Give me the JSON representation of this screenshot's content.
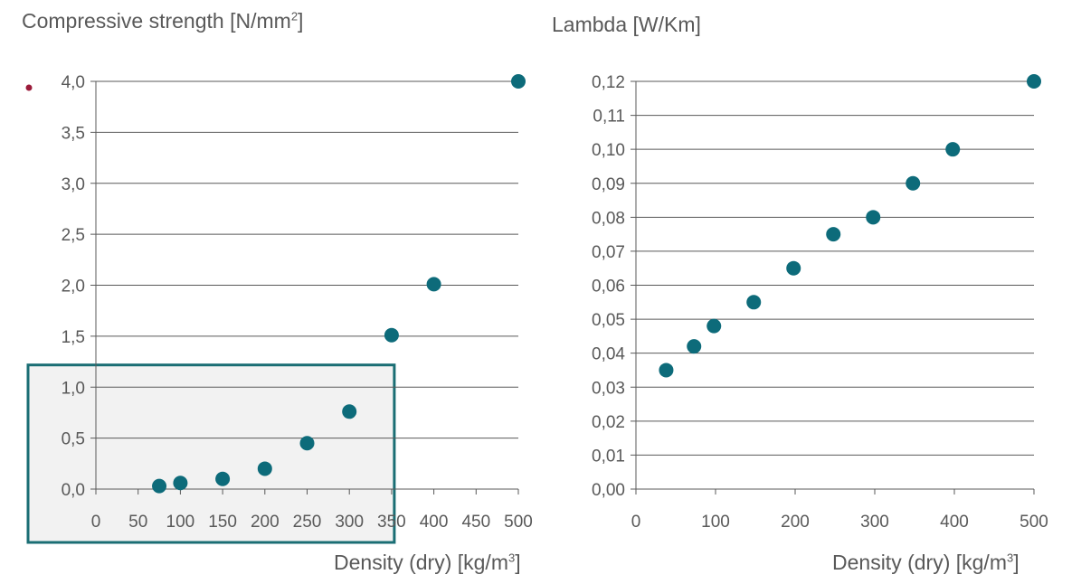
{
  "chart_data": [
    {
      "type": "scatter",
      "title_main": "Compressive strength [N/mm",
      "title_sup": "2",
      "title_end": "]",
      "xlabel_main": "Density (dry) [kg/m",
      "xlabel_sup": "3",
      "xlabel_end": "]",
      "xlim": [
        0,
        500
      ],
      "ylim": [
        0,
        4
      ],
      "x_ticks": [
        "0",
        "50",
        "100",
        "150",
        "200",
        "250",
        "300",
        "350",
        "400",
        "450",
        "500"
      ],
      "y_ticks": [
        "0,0",
        "0,5",
        "1,0",
        "1,5",
        "2,0",
        "2,5",
        "3,0",
        "3,5",
        "4,0"
      ],
      "grid": "horizontal",
      "points": [
        {
          "x": 75,
          "y": 0.03
        },
        {
          "x": 100,
          "y": 0.06
        },
        {
          "x": 150,
          "y": 0.1
        },
        {
          "x": 200,
          "y": 0.2
        },
        {
          "x": 250,
          "y": 0.45
        },
        {
          "x": 300,
          "y": 0.76
        },
        {
          "x": 350,
          "y": 1.51
        },
        {
          "x": 400,
          "y": 2.01
        },
        {
          "x": 500,
          "y": 4.0
        }
      ],
      "highlight_region": {
        "x": [
          0,
          350
        ],
        "y": [
          0,
          1.2
        ]
      },
      "marker_color": "#0d6b7a",
      "highlight_color": "#1a6e74"
    },
    {
      "type": "scatter",
      "title_main": "Lambda [W/Km]",
      "xlabel_main": "Density (dry) [kg/m",
      "xlabel_sup": "3",
      "xlabel_end": "]",
      "xlim": [
        0,
        500
      ],
      "ylim": [
        0,
        0.12
      ],
      "x_ticks": [
        "0",
        "100",
        "200",
        "300",
        "400",
        "500"
      ],
      "y_ticks": [
        "0,00",
        "0,01",
        "0,02",
        "0,03",
        "0,04",
        "0,05",
        "0,06",
        "0,07",
        "0,08",
        "0,09",
        "0,10",
        "0,11",
        "0,12"
      ],
      "grid": "horizontal",
      "points": [
        {
          "x": 38,
          "y": 0.035
        },
        {
          "x": 73,
          "y": 0.042
        },
        {
          "x": 98,
          "y": 0.048
        },
        {
          "x": 148,
          "y": 0.055
        },
        {
          "x": 198,
          "y": 0.065
        },
        {
          "x": 248,
          "y": 0.075
        },
        {
          "x": 298,
          "y": 0.08
        },
        {
          "x": 348,
          "y": 0.09
        },
        {
          "x": 398,
          "y": 0.1
        },
        {
          "x": 500,
          "y": 0.12
        }
      ],
      "marker_color": "#0d6b7a"
    }
  ],
  "decor": {
    "dot_color": "#9b1b3a"
  }
}
